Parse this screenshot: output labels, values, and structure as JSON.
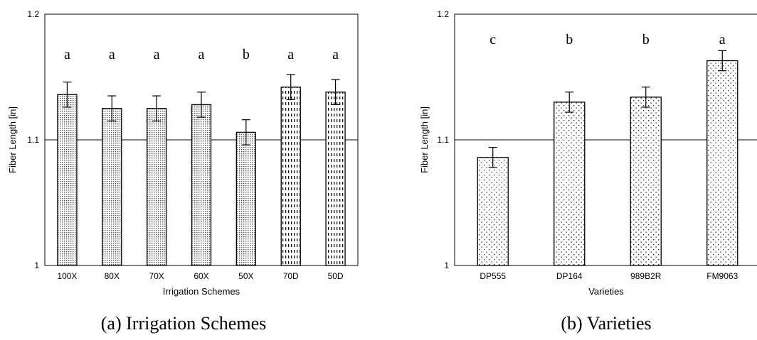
{
  "chart_data": [
    {
      "type": "bar",
      "caption": "(a) Irrigation Schemes",
      "xlabel": "Irrigation Schemes",
      "ylabel": "Fiber Length [in]",
      "ylim": [
        1,
        1.2
      ],
      "yticks": [
        "1",
        "1.1",
        "1.2"
      ],
      "reference_line": 1.1,
      "categories": [
        "100X",
        "80X",
        "70X",
        "60X",
        "50X",
        "70D",
        "50D"
      ],
      "values": [
        1.136,
        1.125,
        1.125,
        1.128,
        1.106,
        1.142,
        1.138
      ],
      "errors": [
        0.01,
        0.01,
        0.01,
        0.01,
        0.01,
        0.01,
        0.01
      ],
      "letters": [
        "a",
        "a",
        "a",
        "a",
        "b",
        "a",
        "a"
      ],
      "patterns": [
        "fine-dots",
        "fine-dots",
        "fine-dots",
        "fine-dots",
        "fine-dots",
        "dashes",
        "dashes"
      ]
    },
    {
      "type": "bar",
      "caption": "(b) Varieties",
      "xlabel": "Varieties",
      "ylabel": "Fiber Length [in]",
      "ylim": [
        1,
        1.2
      ],
      "yticks": [
        "1",
        "1.1",
        "1.2"
      ],
      "reference_line": 1.1,
      "categories": [
        "DP555",
        "DP164",
        "989B2R",
        "FM9063"
      ],
      "values": [
        1.086,
        1.13,
        1.134,
        1.163
      ],
      "errors": [
        0.008,
        0.008,
        0.008,
        0.008
      ],
      "letters": [
        "c",
        "b",
        "b",
        "a"
      ],
      "patterns": [
        "sparse-dots",
        "sparse-dots",
        "sparse-dots",
        "sparse-dots"
      ]
    }
  ]
}
